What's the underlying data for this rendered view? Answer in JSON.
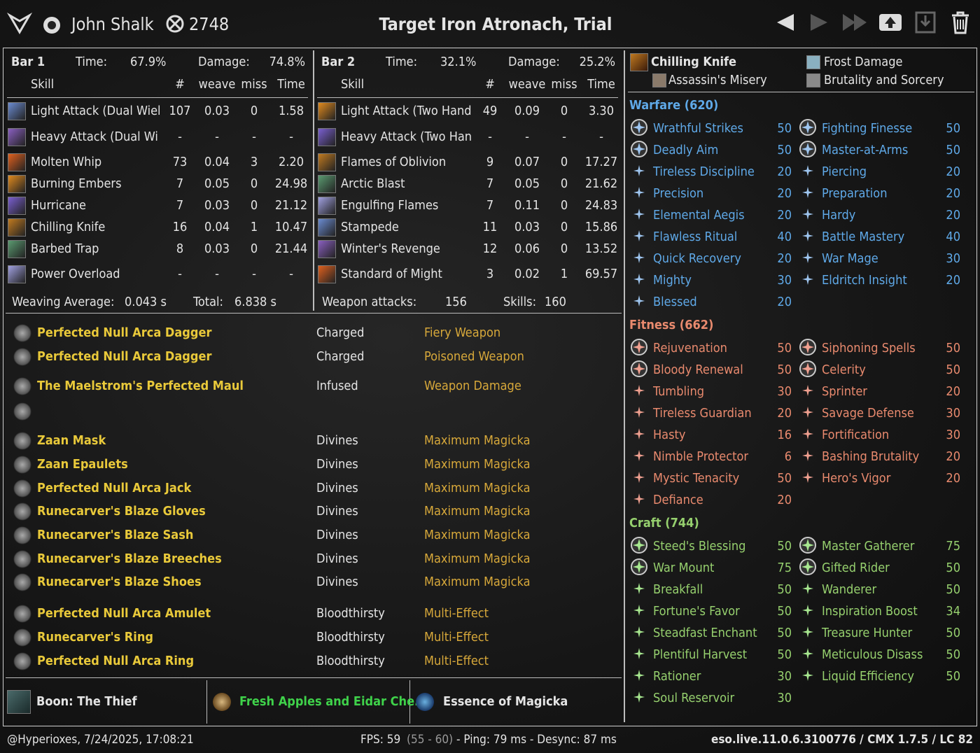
{
  "header": {
    "player": "John Shalk",
    "champion_points": "2748",
    "title": "Target Iron Atronach, Trial"
  },
  "bars": [
    {
      "name": "Bar 1",
      "time_label": "Time:",
      "time": "67.9%",
      "damage_label": "Damage:",
      "damage": "74.8%",
      "columns": [
        "Skill",
        "#",
        "weave",
        "miss",
        "Time"
      ],
      "rows": [
        [
          "Light Attack (Dual Wiel",
          "107",
          "0.03",
          "0",
          "1.58"
        ],
        [
          "Heavy Attack (Dual Wi",
          "-",
          "-",
          "-",
          "-"
        ],
        [
          "Molten Whip",
          "73",
          "0.04",
          "3",
          "2.20"
        ],
        [
          "Burning Embers",
          "7",
          "0.05",
          "0",
          "24.98"
        ],
        [
          "Hurricane",
          "7",
          "0.03",
          "0",
          "21.12"
        ],
        [
          "Chilling Knife",
          "16",
          "0.04",
          "1",
          "10.47"
        ],
        [
          "Barbed Trap",
          "8",
          "0.03",
          "0",
          "21.44"
        ],
        [
          "Power Overload",
          "-",
          "-",
          "-",
          "-"
        ]
      ],
      "footer": [
        "Weaving Average:",
        "0.043 s",
        "Total:",
        "6.838 s"
      ]
    },
    {
      "name": "Bar 2",
      "time_label": "Time:",
      "time": "32.1%",
      "damage_label": "Damage:",
      "damage": "25.2%",
      "columns": [
        "Skill",
        "#",
        "weave",
        "miss",
        "Time"
      ],
      "rows": [
        [
          "Light Attack (Two Hand",
          "49",
          "0.09",
          "0",
          "3.30"
        ],
        [
          "Heavy Attack (Two Han",
          "-",
          "-",
          "-",
          "-"
        ],
        [
          "Flames of Oblivion",
          "9",
          "0.07",
          "0",
          "17.27"
        ],
        [
          "Arctic Blast",
          "7",
          "0.05",
          "0",
          "21.62"
        ],
        [
          "Engulfing Flames",
          "7",
          "0.11",
          "0",
          "24.83"
        ],
        [
          "Stampede",
          "11",
          "0.03",
          "0",
          "15.86"
        ],
        [
          "Winter's Revenge",
          "12",
          "0.06",
          "0",
          "13.52"
        ],
        [
          "Standard of Might",
          "3",
          "0.02",
          "1",
          "69.57"
        ]
      ],
      "footer": [
        "Weapon attacks:",
        "156",
        "Skills:",
        "160"
      ]
    }
  ],
  "gear": [
    [
      "Perfected Null Arca Dagger",
      "Charged",
      "Fiery Weapon"
    ],
    [
      "Perfected Null Arca Dagger",
      "Charged",
      "Poisoned Weapon"
    ],
    [
      "The Maelstrom's Perfected Maul",
      "Infused",
      "Weapon Damage"
    ],
    [
      "Zaan Mask",
      "Divines",
      "Maximum Magicka"
    ],
    [
      "Zaan Epaulets",
      "Divines",
      "Maximum Magicka"
    ],
    [
      "Perfected Null Arca Jack",
      "Divines",
      "Maximum Magicka"
    ],
    [
      "Runecarver's Blaze Gloves",
      "Divines",
      "Maximum Magicka"
    ],
    [
      "Runecarver's Blaze Sash",
      "Divines",
      "Maximum Magicka"
    ],
    [
      "Runecarver's Blaze Breeches",
      "Divines",
      "Maximum Magicka"
    ],
    [
      "Runecarver's Blaze Shoes",
      "Divines",
      "Maximum Magicka"
    ],
    [
      "Perfected Null Arca Amulet",
      "Bloodthirsty",
      "Multi-Effect"
    ],
    [
      "Runecarver's Ring",
      "Bloodthirsty",
      "Multi-Effect"
    ],
    [
      "Perfected Null Arca Ring",
      "Bloodthirsty",
      "Multi-Effect"
    ]
  ],
  "consumables": {
    "boon": "Boon: The Thief",
    "food": "Fresh Apples and Eidar Che...",
    "potion": "Essence of Magicka"
  },
  "subclass": {
    "skill": "Chilling Knife",
    "damage_type": "Frost Damage",
    "skill_line_1": "Assassin's Misery",
    "skill_line_2": "Brutality and Sorcery"
  },
  "champion_points": [
    {
      "title": "Warfare (620)",
      "stars": [
        {
          "name": "Wrathful Strikes",
          "value": 50
        },
        {
          "name": "Fighting Finesse",
          "value": 50
        },
        {
          "name": "Deadly Aim",
          "value": 50
        },
        {
          "name": "Master-at-Arms",
          "value": 50
        },
        {
          "name": "Tireless Discipline",
          "value": 20
        },
        {
          "name": "Piercing",
          "value": 20
        },
        {
          "name": "Precision",
          "value": 20
        },
        {
          "name": "Preparation",
          "value": 20
        },
        {
          "name": "Elemental Aegis",
          "value": 20
        },
        {
          "name": "Hardy",
          "value": 20
        },
        {
          "name": "Flawless Ritual",
          "value": 40
        },
        {
          "name": "Battle Mastery",
          "value": 40
        },
        {
          "name": "Quick Recovery",
          "value": 20
        },
        {
          "name": "War Mage",
          "value": 30
        },
        {
          "name": "Mighty",
          "value": 30
        },
        {
          "name": "Eldritch Insight",
          "value": 20
        },
        {
          "name": "Blessed",
          "value": 20
        }
      ]
    },
    {
      "title": "Fitness (662)",
      "stars": [
        {
          "name": "Rejuvenation",
          "value": 50
        },
        {
          "name": "Siphoning Spells",
          "value": 50
        },
        {
          "name": "Bloody Renewal",
          "value": 50
        },
        {
          "name": "Celerity",
          "value": 50
        },
        {
          "name": "Tumbling",
          "value": 30
        },
        {
          "name": "Sprinter",
          "value": 20
        },
        {
          "name": "Tireless Guardian",
          "value": 20
        },
        {
          "name": "Savage Defense",
          "value": 30
        },
        {
          "name": "Hasty",
          "value": 16
        },
        {
          "name": "Fortification",
          "value": 30
        },
        {
          "name": "Nimble Protector",
          "value": 6
        },
        {
          "name": "Bashing Brutality",
          "value": 20
        },
        {
          "name": "Mystic Tenacity",
          "value": 50
        },
        {
          "name": "Hero's Vigor",
          "value": 20
        },
        {
          "name": "Defiance",
          "value": 20
        }
      ]
    },
    {
      "title": "Craft (744)",
      "stars": [
        {
          "name": "Steed's Blessing",
          "value": 50
        },
        {
          "name": "Master Gatherer",
          "value": 75
        },
        {
          "name": "War Mount",
          "value": 75
        },
        {
          "name": "Gifted Rider",
          "value": 50
        },
        {
          "name": "Breakfall",
          "value": 50
        },
        {
          "name": "Wanderer",
          "value": 50
        },
        {
          "name": "Fortune's Favor",
          "value": 50
        },
        {
          "name": "Inspiration Boost",
          "value": 34
        },
        {
          "name": "Steadfast Enchant",
          "value": 50
        },
        {
          "name": "Treasure Hunter",
          "value": 50
        },
        {
          "name": "Plentiful Harvest",
          "value": 50
        },
        {
          "name": "Meticulous Disass",
          "value": 50
        },
        {
          "name": "Rationer",
          "value": 30
        },
        {
          "name": "Liquid Efficiency",
          "value": 50
        },
        {
          "name": "Soul Reservoir",
          "value": 30
        }
      ]
    }
  ],
  "status": {
    "user": "@Hyperioxes, 7/24/2025, 17:08:21",
    "fps": "FPS: 59",
    "fps_range": "(55 - 60)",
    "ping": "- Ping: 79 ms - Desync: 87 ms",
    "version": "eso.live.11.0.6.3100776 / CMX 1.7.5 / LC 82"
  }
}
